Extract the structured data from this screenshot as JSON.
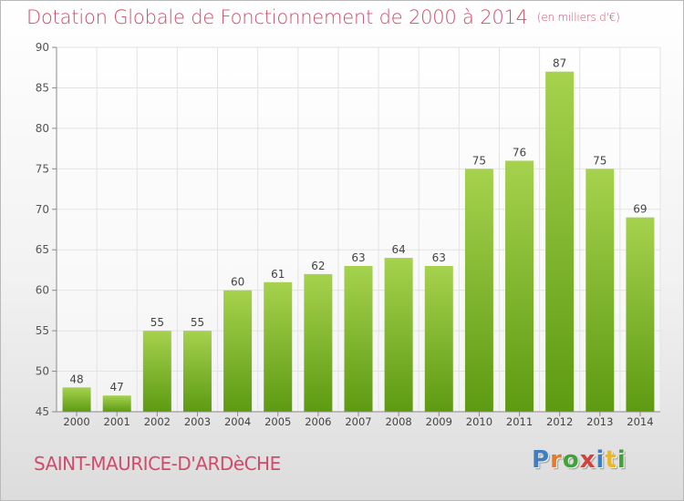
{
  "title": "Dotation Globale de Fonctionnement de 2000 à 2014",
  "unit": "(en milliers d'€)",
  "commune": "SAINT-MAURICE-D'ARDèCHE",
  "logo": {
    "text": "Proxiti",
    "colors": [
      "#3f7fc1",
      "#e8782a",
      "#3fa33a",
      "#d2413a",
      "#3f7fc1",
      "#e8b82a",
      "#3fa33a"
    ]
  },
  "colors": {
    "title": "#d24b6a",
    "bar_top": "#a6d24e",
    "bar_bottom": "#5d9a12",
    "grid": "#e3e3e3"
  },
  "chart_data": {
    "type": "bar",
    "title": "Dotation Globale de Fonctionnement de 2000 à 2014",
    "categories": [
      "2000",
      "2001",
      "2002",
      "2003",
      "2004",
      "2005",
      "2006",
      "2007",
      "2008",
      "2009",
      "2010",
      "2011",
      "2012",
      "2013",
      "2014"
    ],
    "values": [
      48,
      47,
      55,
      55,
      60,
      61,
      62,
      63,
      64,
      63,
      75,
      76,
      87,
      75,
      69
    ],
    "ylim": [
      45,
      90
    ],
    "yticks": [
      45,
      50,
      55,
      60,
      65,
      70,
      75,
      80,
      85,
      90
    ],
    "grid": true
  }
}
